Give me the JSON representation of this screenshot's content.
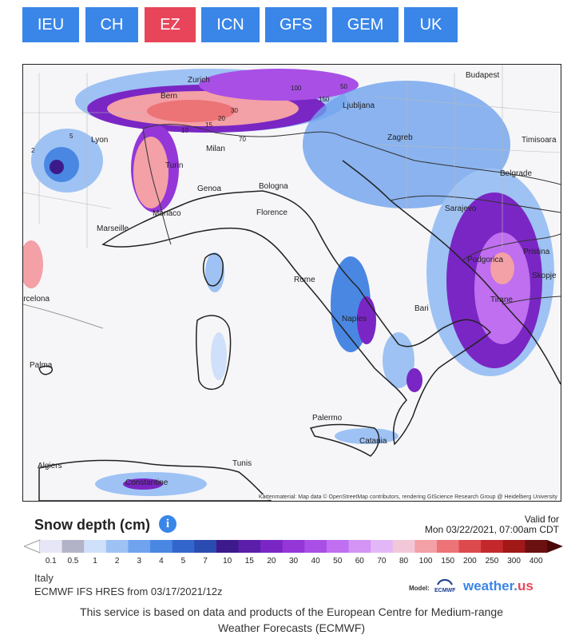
{
  "tabs": [
    {
      "label": "IEU",
      "active": false
    },
    {
      "label": "CH",
      "active": false
    },
    {
      "label": "EZ",
      "active": true
    },
    {
      "label": "ICN",
      "active": false
    },
    {
      "label": "GFS",
      "active": false
    },
    {
      "label": "GEM",
      "active": false
    },
    {
      "label": "UK",
      "active": false
    }
  ],
  "map": {
    "cities": [
      "Zurich",
      "Bern",
      "Lyon",
      "Milan",
      "Turin",
      "Genoa",
      "Monaco",
      "Marseille",
      "Bologna",
      "Florence",
      "Rome",
      "Naples",
      "Bari",
      "Palermo",
      "Catania",
      "Tunis",
      "Algiers",
      "Constantine",
      "Palma",
      "Barcelona",
      "Ljubljana",
      "Zagreb",
      "Budapest",
      "Timisoara",
      "Belgrade",
      "Sarajevo",
      "Podgorica",
      "Pristina",
      "Skopje",
      "Tirane"
    ],
    "credit": "Kartenmaterial: Map data © OpenStreetMap contributors, rendering GIScience Research Group @ Heidelberg University",
    "contour_labels": [
      "100",
      "150",
      "50",
      "30",
      "20",
      "15",
      "70",
      "10",
      "5",
      "2"
    ]
  },
  "legend": {
    "title": "Snow depth (cm)",
    "valid_label": "Valid for",
    "valid_date": "Mon 03/22/2021, 07:00am CDT",
    "ticks": [
      "0.1",
      "0.5",
      "1",
      "2",
      "3",
      "4",
      "5",
      "7",
      "10",
      "15",
      "20",
      "30",
      "40",
      "50",
      "60",
      "70",
      "80",
      "100",
      "150",
      "200",
      "250",
      "300",
      "400"
    ],
    "colors": [
      "#e6e6f7",
      "#b3b3c8",
      "#cfe0fa",
      "#9ec2f4",
      "#6fa3ee",
      "#4a87e3",
      "#3366cc",
      "#2a4bb0",
      "#3d1a8c",
      "#5a1ea8",
      "#7a26c4",
      "#9436d8",
      "#a94fe6",
      "#bf6fef",
      "#d394f5",
      "#e3b7f7",
      "#f2c8d8",
      "#f3a0a6",
      "#ec7376",
      "#dc4a4d",
      "#c2282c",
      "#a01818",
      "#6b1010"
    ]
  },
  "info": {
    "region": "Italy",
    "model_run": "ECMWF IFS HRES from 03/17/2021/12z",
    "model_label": "Model:",
    "ecmwf_text": "ECMWF",
    "brand_main": "weather.",
    "brand_suffix": "us"
  },
  "footer": {
    "line1": "This service is based on data and products of the European Centre for Medium-range",
    "line2": "Weather Forecasts (ECMWF)"
  }
}
